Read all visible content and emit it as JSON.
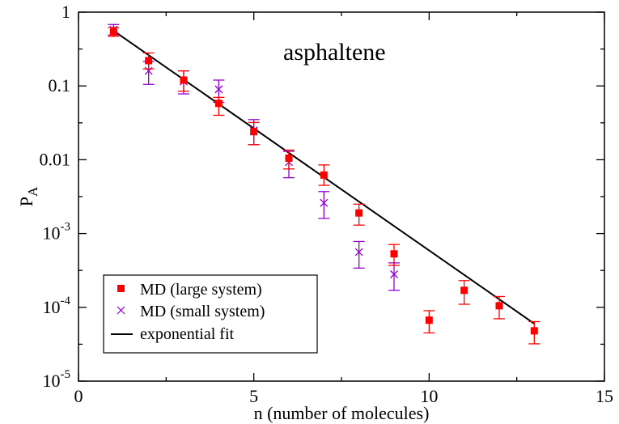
{
  "chart_data": {
    "type": "scatter",
    "annotation": "asphaltene",
    "xlabel": "n (number of molecules)",
    "ylabel": {
      "main": "P",
      "subscript": "A"
    },
    "xlim": [
      0,
      15
    ],
    "ylim": [
      1e-05,
      1
    ],
    "yscale": "log",
    "grid": false,
    "legend_position": "bottom-left",
    "x_ticks": [
      {
        "value": 0,
        "label": "0"
      },
      {
        "value": 5,
        "label": "5"
      },
      {
        "value": 10,
        "label": "10"
      },
      {
        "value": 15,
        "label": "15"
      }
    ],
    "y_ticks": [
      {
        "value": 1,
        "label": "1"
      },
      {
        "value": 0.1,
        "label": "0.1"
      },
      {
        "value": 0.01,
        "label": "0.01"
      },
      {
        "value": 0.001,
        "base": "10",
        "exp": "-3"
      },
      {
        "value": 0.0001,
        "base": "10",
        "exp": "-4"
      },
      {
        "value": 1e-05,
        "base": "10",
        "exp": "-5"
      }
    ],
    "series": [
      {
        "name": "MD (large system)",
        "marker": "square",
        "color": "#ff0000",
        "points": [
          {
            "x": 1,
            "y": 0.54,
            "lo": 0.47,
            "hi": 0.62
          },
          {
            "x": 2,
            "y": 0.22,
            "lo": 0.17,
            "hi": 0.28
          },
          {
            "x": 3,
            "y": 0.12,
            "lo": 0.085,
            "hi": 0.16
          },
          {
            "x": 4,
            "y": 0.058,
            "lo": 0.04,
            "hi": 0.07
          },
          {
            "x": 5,
            "y": 0.024,
            "lo": 0.016,
            "hi": 0.032
          },
          {
            "x": 6,
            "y": 0.0105,
            "lo": 0.0075,
            "hi": 0.0135
          },
          {
            "x": 7,
            "y": 0.0062,
            "lo": 0.0045,
            "hi": 0.0085
          },
          {
            "x": 8,
            "y": 0.0019,
            "lo": 0.0013,
            "hi": 0.0025
          },
          {
            "x": 9,
            "y": 0.00053,
            "lo": 0.00037,
            "hi": 0.00071
          },
          {
            "x": 10,
            "y": 6.7e-05,
            "lo": 4.5e-05,
            "hi": 9e-05
          },
          {
            "x": 11,
            "y": 0.00017,
            "lo": 0.00011,
            "hi": 0.00023
          },
          {
            "x": 12,
            "y": 0.000105,
            "lo": 7e-05,
            "hi": 0.00014
          },
          {
            "x": 13,
            "y": 4.8e-05,
            "lo": 3.2e-05,
            "hi": 6.4e-05
          }
        ]
      },
      {
        "name": "MD (small system)",
        "marker": "x",
        "color": "#9400d3",
        "points": [
          {
            "x": 1,
            "y": 0.58,
            "lo": 0.49,
            "hi": 0.68
          },
          {
            "x": 2,
            "y": 0.16,
            "lo": 0.105,
            "hi": 0.215
          },
          {
            "x": 3,
            "y": 0.115,
            "lo": 0.078,
            "hi": 0.16
          },
          {
            "x": 4,
            "y": 0.09,
            "lo": 0.06,
            "hi": 0.12
          },
          {
            "x": 5,
            "y": 0.025,
            "lo": 0.016,
            "hi": 0.035
          },
          {
            "x": 6,
            "y": 0.0093,
            "lo": 0.0057,
            "hi": 0.013
          },
          {
            "x": 7,
            "y": 0.0026,
            "lo": 0.0016,
            "hi": 0.0037
          },
          {
            "x": 8,
            "y": 0.00056,
            "lo": 0.00034,
            "hi": 0.00078
          },
          {
            "x": 9,
            "y": 0.00028,
            "lo": 0.00017,
            "hi": 0.0004
          }
        ]
      },
      {
        "name": "exponential fit",
        "type": "line",
        "color": "#000000",
        "points": [
          {
            "x": 1,
            "y": 0.56
          },
          {
            "x": 13,
            "y": 6e-05
          }
        ]
      }
    ]
  }
}
